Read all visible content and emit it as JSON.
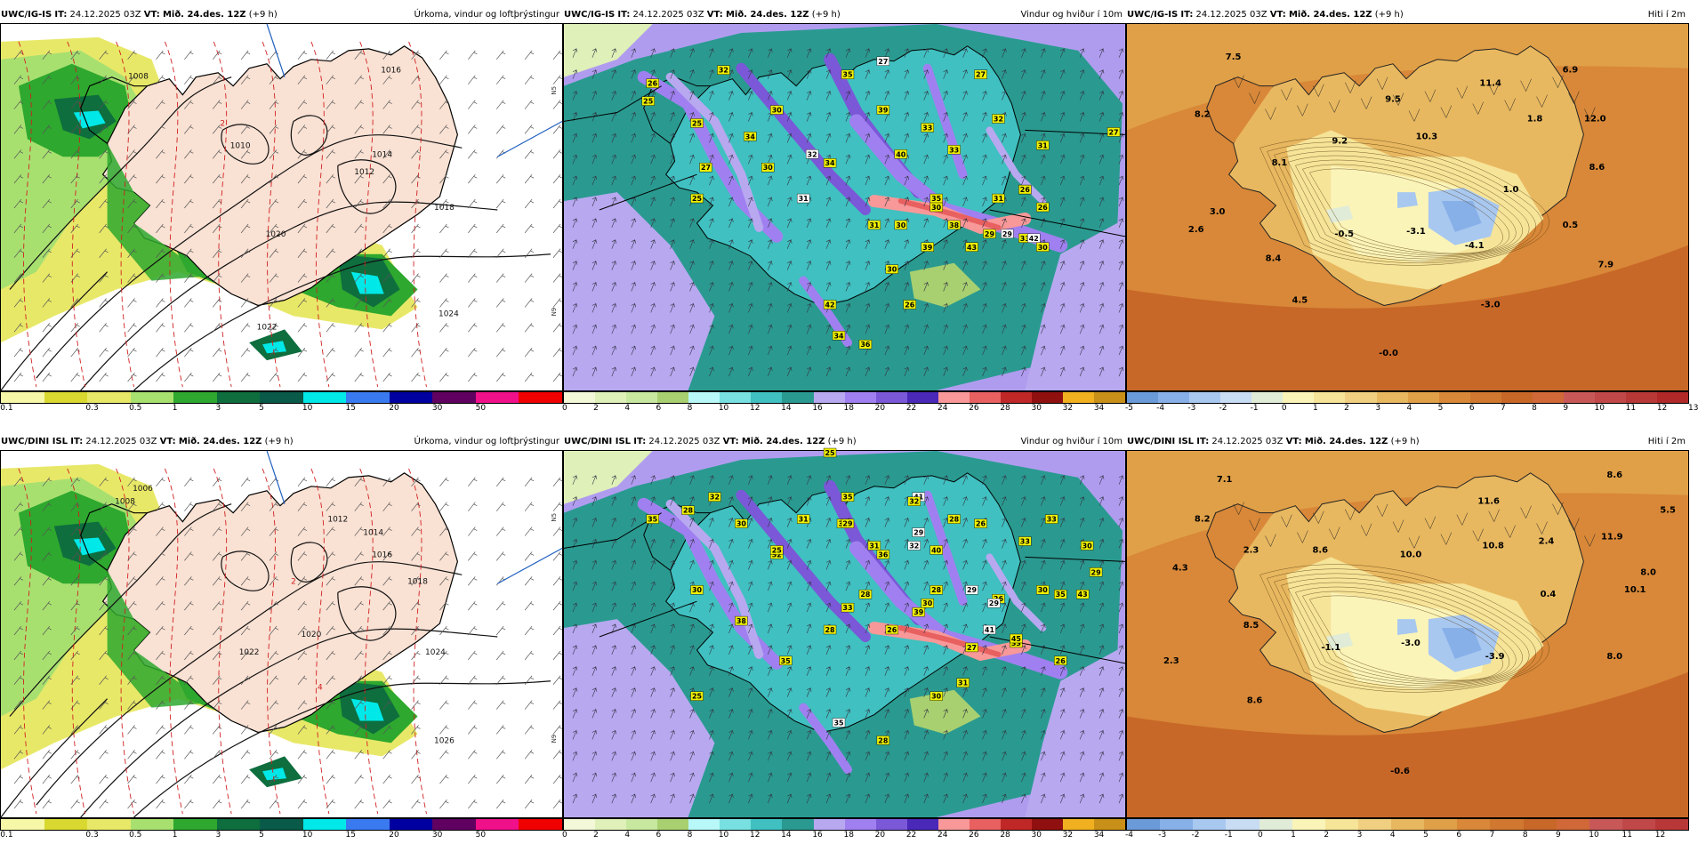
{
  "panels": [
    {
      "model": "UWC/IG-IS",
      "it_label": "IT:",
      "it": "24.12.2025 03Z",
      "vt_label": "VT:",
      "vt": "Mið. 24.des. 12Z",
      "lead": "(+9 h)",
      "title": "Úrkoma, vindur og loftþrýstingur",
      "kind": "precip",
      "colors": [
        "#f7f7a8",
        "#d8d830",
        "#e8e868",
        "#a8e070",
        "#2ea82e",
        "#0e6e3e",
        "#0a5a4a",
        "#00e8e8",
        "#3a7af0",
        "#0000a0",
        "#600060",
        "#f0108a",
        "#f00000"
      ],
      "ticks": [
        "0.1",
        "0.3",
        "0.5",
        "1",
        "3",
        "5",
        "10",
        "15",
        "20",
        "30",
        "50"
      ],
      "labels": [
        "1008",
        "1010",
        "1016",
        "1014",
        "1012",
        "1022",
        "1024",
        "1018",
        "1020",
        "2"
      ],
      "side_labels": [
        "N5",
        "N9"
      ]
    },
    {
      "model": "UWC/IG-IS",
      "it_label": "IT:",
      "it": "24.12.2025 03Z",
      "vt_label": "VT:",
      "vt": "Mið. 24.des. 12Z",
      "lead": "(+9 h)",
      "title": "Vindur og hviður í 10m",
      "kind": "wind",
      "colors": [
        "#f2f8d8",
        "#dff0b8",
        "#c8e8a0",
        "#a8d070",
        "#b8f8f8",
        "#78e0e0",
        "#40c0c0",
        "#2a9a90",
        "#b8a8f0",
        "#a080f0",
        "#7a58d8",
        "#4a28b8",
        "#f89898",
        "#e86060",
        "#c02828",
        "#901010",
        "#f0b020",
        "#c89018"
      ],
      "ticks": [
        "0",
        "2",
        "4",
        "6",
        "8",
        "10",
        "12",
        "14",
        "16",
        "18",
        "20",
        "22",
        "24",
        "26",
        "28",
        "30",
        "32",
        "34"
      ],
      "labels": [
        "26",
        "32",
        "35",
        "27",
        "27",
        "34",
        "25",
        "30",
        "33",
        "39",
        "32",
        "25",
        "32",
        "40",
        "33",
        "31",
        "27",
        "30",
        "35",
        "34",
        "30",
        "27",
        "31",
        "30",
        "31",
        "31",
        "38",
        "33",
        "30",
        "39",
        "43",
        "42",
        "26",
        "25",
        "30",
        "42",
        "26",
        "26",
        "29",
        "34",
        "36",
        "30",
        "29"
      ]
    },
    {
      "model": "UWC/IG-IS",
      "it_label": "IT:",
      "it": "24.12.2025 03Z",
      "vt_label": "VT:",
      "vt": "Mið. 24.des. 12Z",
      "lead": "(+9 h)",
      "title": "Hiti í 2m",
      "kind": "temp",
      "colors": [
        "#6a9ad8",
        "#88b0e8",
        "#a8c8f0",
        "#c8dcf4",
        "#e0ecd8",
        "#fbf4b8",
        "#f6e498",
        "#f0d080",
        "#e8b860",
        "#e0a048",
        "#d88838",
        "#d07830",
        "#c86828",
        "#d06838",
        "#c85858",
        "#c04848",
        "#b83838",
        "#b02828"
      ],
      "ticks": [
        "-5",
        "-4",
        "-3",
        "-2",
        "-1",
        "0",
        "1",
        "2",
        "3",
        "4",
        "5",
        "6",
        "7",
        "8",
        "9",
        "10",
        "11",
        "12",
        "13"
      ],
      "labels": [
        "7.5",
        "8.2",
        "9.5",
        "11.4",
        "6.9",
        "12.0",
        "9.2",
        "10.3",
        "1.8",
        "8.1",
        "8.6",
        "3.0",
        "1.0",
        "2.6",
        "-0.5",
        "-3.1",
        "-4.1",
        "0.5",
        "8.4",
        "7.9",
        "4.5",
        "-3.0",
        "-0.0"
      ]
    },
    {
      "model": "UWC/DINI ISL",
      "it_label": "IT:",
      "it": "24.12.2025 03Z",
      "vt_label": "VT:",
      "vt": "Mið. 24.des. 12Z",
      "lead": "(+9 h)",
      "title": "Úrkoma, vindur og loftþrýstingur",
      "kind": "precip",
      "colors": [
        "#f7f7a8",
        "#d8d830",
        "#e8e868",
        "#a8e070",
        "#2ea82e",
        "#0e6e3e",
        "#0a5a4a",
        "#00e8e8",
        "#3a7af0",
        "#0000a0",
        "#600060",
        "#f0108a",
        "#f00000"
      ],
      "ticks": [
        "0.1",
        "0.3",
        "0.5",
        "1",
        "3",
        "5",
        "10",
        "15",
        "20",
        "30",
        "50"
      ],
      "labels": [
        "1006",
        "1008",
        "1012",
        "1014",
        "1016",
        "1018",
        "1020",
        "1022",
        "1024",
        "1026",
        "2",
        "4"
      ],
      "side_labels": [
        "N5",
        "N9"
      ]
    },
    {
      "model": "UWC/DINI ISL",
      "it_label": "IT:",
      "it": "24.12.2025 03Z",
      "vt_label": "VT:",
      "vt": "Mið. 24.des. 12Z",
      "lead": "(+9 h)",
      "title": "Vindur og hviður í 10m",
      "kind": "wind",
      "colors": [
        "#f2f8d8",
        "#dff0b8",
        "#c8e8a0",
        "#a8d070",
        "#b8f8f8",
        "#78e0e0",
        "#40c0c0",
        "#2a9a90",
        "#b8a8f0",
        "#a080f0",
        "#7a58d8",
        "#4a28b8",
        "#f89898",
        "#e86060",
        "#c02828",
        "#901010",
        "#f0b020",
        "#c89018"
      ],
      "ticks": [
        "0",
        "2",
        "4",
        "6",
        "8",
        "10",
        "12",
        "14",
        "16",
        "18",
        "20",
        "22",
        "24",
        "26",
        "28",
        "30",
        "32",
        "34"
      ],
      "labels": [
        "25",
        "32",
        "35",
        "41",
        "32",
        "28",
        "30",
        "31",
        "33",
        "29",
        "29",
        "35",
        "28",
        "26",
        "33",
        "33",
        "31",
        "32",
        "32",
        "25",
        "36",
        "40",
        "28",
        "28",
        "29",
        "26",
        "30",
        "30",
        "33",
        "38",
        "39",
        "29",
        "30",
        "26",
        "27",
        "33",
        "28",
        "43",
        "41",
        "45",
        "35",
        "26",
        "25",
        "31",
        "30",
        "35",
        "28",
        "29",
        "30",
        "35"
      ]
    },
    {
      "model": "UWC/DINI ISL",
      "it_label": "IT:",
      "it": "24.12.2025 03Z",
      "vt_label": "VT:",
      "vt": "Mið. 24.des. 12Z",
      "lead": "(+9 h)",
      "title": "Hiti í 2m",
      "kind": "temp",
      "colors": [
        "#6a9ad8",
        "#88b0e8",
        "#a8c8f0",
        "#c8dcf4",
        "#e0ecd8",
        "#fbf4b8",
        "#f6e498",
        "#f0d080",
        "#e8b860",
        "#e0a048",
        "#d88838",
        "#d07830",
        "#c86828",
        "#d06838",
        "#c85858",
        "#c04848",
        "#b83838"
      ],
      "ticks": [
        "-4",
        "-3",
        "-2",
        "-1",
        "0",
        "1",
        "2",
        "3",
        "4",
        "5",
        "6",
        "7",
        "8",
        "9",
        "10",
        "11",
        "12"
      ],
      "labels": [
        "7.1",
        "8.6",
        "8.2",
        "11.6",
        "5.5",
        "2.3",
        "8.6",
        "10.0",
        "10.8",
        "2.4",
        "11.9",
        "4.3",
        "8.0",
        "0.4",
        "10.1",
        "8.5",
        "-1.1",
        "-3.0",
        "-3.9",
        "8.0",
        "2.3",
        "8.6",
        "-0.6"
      ]
    }
  ]
}
